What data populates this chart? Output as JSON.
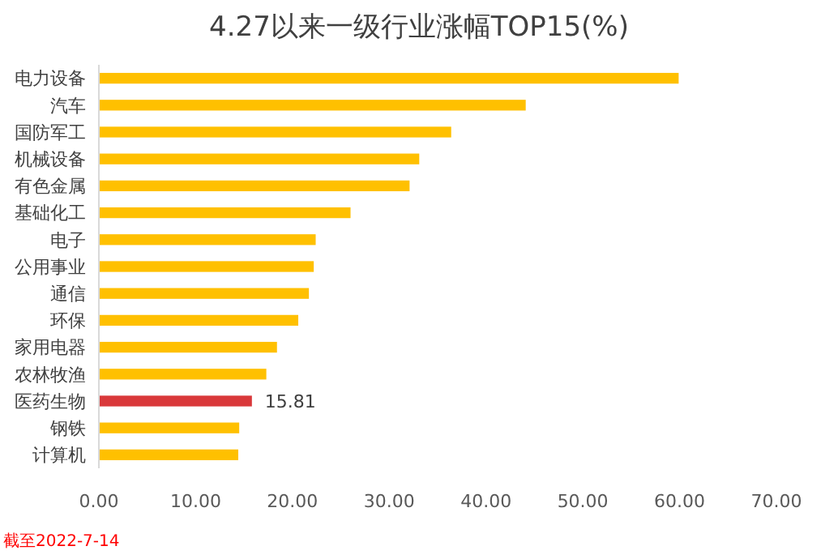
{
  "chart_data": {
    "type": "bar",
    "orientation": "horizontal",
    "title": "4.27以来一级行业涨幅TOP15(%)",
    "categories": [
      "电力设备",
      "汽车",
      "国防军工",
      "机械设备",
      "有色金属",
      "基础化工",
      "电子",
      "公用事业",
      "通信",
      "环保",
      "家用电器",
      "农林牧渔",
      "医药生物",
      "钢铁",
      "计算机"
    ],
    "values": [
      59.9,
      44.1,
      36.4,
      33.1,
      32.1,
      26.0,
      22.4,
      22.2,
      21.7,
      20.6,
      18.4,
      17.3,
      15.81,
      14.5,
      14.4
    ],
    "colors": [
      "#ffc000",
      "#ffc000",
      "#ffc000",
      "#ffc000",
      "#ffc000",
      "#ffc000",
      "#ffc000",
      "#ffc000",
      "#ffc000",
      "#ffc000",
      "#ffc000",
      "#ffc000",
      "#d9383a",
      "#ffc000",
      "#ffc000"
    ],
    "value_labels": [
      null,
      null,
      null,
      null,
      null,
      null,
      null,
      null,
      null,
      null,
      null,
      null,
      "15.81",
      null,
      null
    ],
    "xlim": [
      0,
      70
    ],
    "xticks": [
      {
        "value": 0,
        "label": "0.00"
      },
      {
        "value": 10,
        "label": "10.00"
      },
      {
        "value": 20,
        "label": "20.00"
      },
      {
        "value": 30,
        "label": "30.00"
      },
      {
        "value": 40,
        "label": "40.00"
      },
      {
        "value": 50,
        "label": "50.00"
      },
      {
        "value": 60,
        "label": "60.00"
      },
      {
        "value": 70,
        "label": "70.00"
      }
    ],
    "grid": false,
    "annotations": [
      "截至2022-7-14"
    ]
  }
}
